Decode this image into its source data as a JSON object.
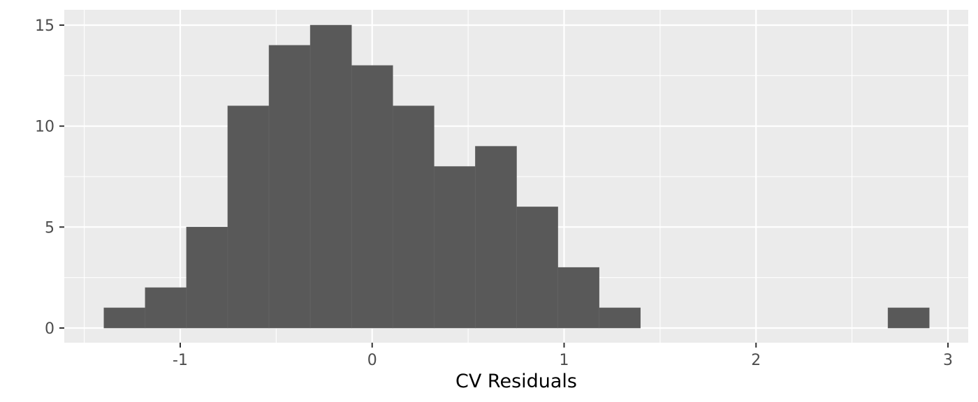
{
  "chart_data": {
    "type": "bar",
    "subtype": "histogram",
    "title": "",
    "xlabel": "CV Residuals",
    "ylabel": "",
    "xlim": [
      -1.5,
      3.0
    ],
    "ylim": [
      0,
      15.7
    ],
    "x_ticks": [
      -1,
      0,
      1,
      2,
      3
    ],
    "x_tick_labels": [
      "-1",
      "0",
      "1",
      "2",
      "3"
    ],
    "y_ticks": [
      0,
      5,
      10,
      15
    ],
    "y_tick_labels": [
      "0",
      "5",
      "10",
      "15"
    ],
    "bin_edges": [
      -1.3975,
      -1.1825,
      -0.9675,
      -0.7525,
      -0.5375,
      -0.3225,
      -0.1075,
      0.1075,
      0.3225,
      0.5375,
      0.7525,
      0.9675,
      1.1825,
      1.3975,
      1.6125,
      1.8275,
      2.0425,
      2.2575,
      2.4725,
      2.6875,
      2.9025
    ],
    "counts": [
      1,
      2,
      5,
      11,
      14,
      15,
      13,
      11,
      8,
      9,
      6,
      3,
      1,
      0,
      0,
      0,
      0,
      0,
      0,
      1
    ],
    "grid": true,
    "panel_background": "#ebebeb",
    "bar_color": "#595959",
    "grid_color": "#ffffff",
    "legend": "none"
  }
}
